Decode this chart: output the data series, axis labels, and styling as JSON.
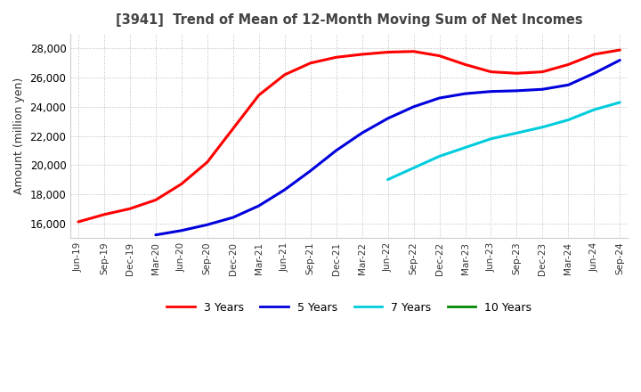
{
  "title": "[3941]  Trend of Mean of 12-Month Moving Sum of Net Incomes",
  "ylabel": "Amount (million yen)",
  "background_color": "#ffffff",
  "grid_color": "#bbbbbb",
  "ylim": [
    15000,
    29000
  ],
  "yticks": [
    16000,
    18000,
    20000,
    22000,
    24000,
    26000,
    28000
  ],
  "line_colors": {
    "3y": "#ff0000",
    "5y": "#0000dd",
    "7y": "#00ccdd",
    "10y": "#008800"
  },
  "x_labels": [
    "Jun-19",
    "Sep-19",
    "Dec-19",
    "Mar-20",
    "Jun-20",
    "Sep-20",
    "Dec-20",
    "Mar-21",
    "Jun-21",
    "Sep-21",
    "Dec-21",
    "Mar-22",
    "Jun-22",
    "Sep-22",
    "Dec-22",
    "Mar-23",
    "Jun-23",
    "Sep-23",
    "Dec-23",
    "Mar-24",
    "Jun-24",
    "Sep-24"
  ],
  "series_3y": [
    16100,
    16600,
    17000,
    17600,
    18700,
    20200,
    22500,
    24800,
    26200,
    27000,
    27400,
    27600,
    27750,
    27800,
    27500,
    26900,
    26400,
    26300,
    26400,
    26900,
    27600,
    27900
  ],
  "series_5y": [
    null,
    null,
    null,
    15200,
    15500,
    15900,
    16400,
    17200,
    18300,
    19600,
    21000,
    22200,
    23200,
    24000,
    24600,
    24900,
    25050,
    25100,
    25200,
    25500,
    26300,
    27200
  ],
  "series_7y": [
    null,
    null,
    null,
    null,
    null,
    null,
    null,
    null,
    null,
    null,
    null,
    null,
    19000,
    19800,
    20600,
    21200,
    21800,
    22200,
    22600,
    23100,
    23800,
    24300
  ],
  "series_10y": [
    null,
    null,
    null,
    null,
    null,
    null,
    null,
    null,
    null,
    null,
    null,
    null,
    null,
    null,
    null,
    null,
    null,
    null,
    null,
    null,
    null,
    null
  ]
}
